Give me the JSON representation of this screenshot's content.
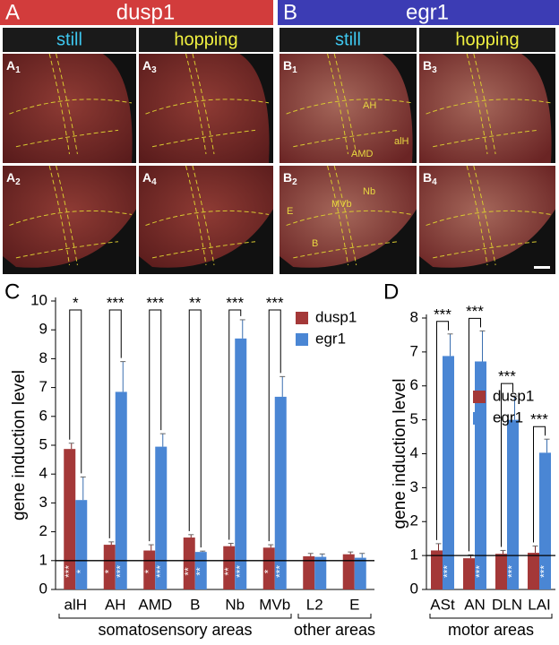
{
  "panels": [
    {
      "letter": "A",
      "title": "dusp1",
      "color": "#d23c3c"
    },
    {
      "letter": "B",
      "title": "egr1",
      "color": "#3c3cb4"
    }
  ],
  "columns": [
    "still",
    "hopping",
    "still",
    "hopping"
  ],
  "image_labels": [
    {
      "main": "A",
      "sub": "1"
    },
    {
      "main": "A",
      "sub": "3"
    },
    {
      "main": "B",
      "sub": "1"
    },
    {
      "main": "B",
      "sub": "3"
    },
    {
      "main": "A",
      "sub": "2"
    },
    {
      "main": "A",
      "sub": "4"
    },
    {
      "main": "B",
      "sub": "2"
    },
    {
      "main": "B",
      "sub": "4"
    }
  ],
  "image_annotations": [
    "AH",
    "alH",
    "AMD",
    "Nb",
    "MVb",
    "E",
    "B"
  ],
  "chart_data": [
    {
      "type": "bar",
      "panel_label": "C",
      "y_label": "gene induction level",
      "categories": [
        "alH",
        "AH",
        "AMD",
        "B",
        "Nb",
        "MVb",
        "L2",
        "E"
      ],
      "groups": [
        "somatosensory areas",
        "other areas"
      ],
      "series": [
        {
          "name": "dusp1",
          "color": "#a43838",
          "values": [
            4.87,
            1.55,
            1.35,
            1.8,
            1.5,
            1.45,
            1.15,
            1.22
          ],
          "errors": [
            0.2,
            0.1,
            0.2,
            0.1,
            0.1,
            0.1,
            0.1,
            0.08
          ],
          "inner_labels": [
            "***",
            "*",
            "*",
            "**",
            "**",
            "*"
          ]
        },
        {
          "name": "egr1",
          "color": "#4a86d4",
          "values": [
            3.1,
            6.85,
            4.95,
            1.3,
            8.7,
            6.68,
            1.13,
            1.1
          ],
          "errors": [
            0.8,
            1.05,
            0.45,
            0.03,
            0.65,
            0.7,
            0.1,
            0.15
          ],
          "inner_labels": [
            "*",
            "***",
            "***",
            "**",
            "***",
            "***"
          ]
        }
      ],
      "significance": [
        "*",
        "***",
        "***",
        "**",
        "***",
        "***"
      ],
      "reference_line": 1,
      "ylim": [
        0,
        10
      ],
      "yticks": [
        0,
        1,
        2,
        3,
        4,
        5,
        6,
        7,
        8,
        9,
        10
      ]
    },
    {
      "type": "bar",
      "panel_label": "D",
      "y_label": "gene induction level",
      "categories": [
        "ASt",
        "AN",
        "DLN",
        "LAI"
      ],
      "groups": [
        "motor areas"
      ],
      "series": [
        {
          "name": "dusp1",
          "color": "#a43838",
          "values": [
            1.15,
            0.92,
            1.05,
            1.08
          ],
          "errors": [
            0.2,
            0.1,
            0.1,
            0.2
          ]
        },
        {
          "name": "egr1",
          "color": "#4a86d4",
          "values": [
            6.88,
            6.72,
            5.0,
            4.03
          ],
          "errors": [
            0.65,
            0.9,
            0.7,
            0.4
          ],
          "inner_labels": [
            "***",
            "***",
            "***",
            "***"
          ]
        }
      ],
      "significance": [
        "***",
        "***",
        "***",
        "***"
      ],
      "reference_line": 1,
      "ylim": [
        0,
        8
      ],
      "yticks": [
        0,
        1,
        2,
        3,
        4,
        5,
        6,
        7,
        8
      ]
    }
  ]
}
